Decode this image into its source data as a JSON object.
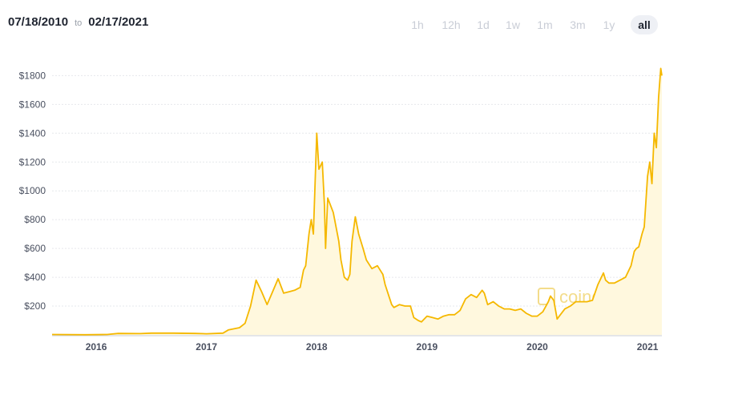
{
  "range": {
    "from": "07/18/2010",
    "to_word": "to",
    "to": "02/17/2021"
  },
  "tabs": [
    {
      "label": "1h"
    },
    {
      "label": "12h"
    },
    {
      "label": "1d"
    },
    {
      "label": "1w"
    },
    {
      "label": "1m"
    },
    {
      "label": "3m"
    },
    {
      "label": "1y"
    },
    {
      "label": "all",
      "active": true
    }
  ],
  "watermark": "coindesk",
  "colors": {
    "line": "#f5b800",
    "area": "#fff8de",
    "grid": "#e6e8ec",
    "axis": "#c9ccd2"
  },
  "chart_data": {
    "type": "line",
    "title": "",
    "xlabel": "",
    "ylabel": "",
    "grid": true,
    "y_ticks": [
      200,
      400,
      600,
      800,
      1000,
      1200,
      1400,
      1600,
      1800
    ],
    "y_tick_labels": [
      "$200",
      "$400",
      "$600",
      "$800",
      "$1000",
      "$1200",
      "$1400",
      "$1600",
      "$1800"
    ],
    "ylim": [
      0,
      1880
    ],
    "x_ticks": [
      2016,
      2017,
      2018,
      2019,
      2020,
      2021
    ],
    "x_tick_labels": [
      "2016",
      "2017",
      "2018",
      "2019",
      "2020",
      "2021"
    ],
    "xlim": [
      2015.6,
      2021.13
    ],
    "series": [
      {
        "values": [
          [
            2015.6,
            3
          ],
          [
            2015.9,
            1
          ],
          [
            2016.1,
            3
          ],
          [
            2016.2,
            10
          ],
          [
            2016.4,
            9
          ],
          [
            2016.5,
            12
          ],
          [
            2016.7,
            12
          ],
          [
            2016.9,
            10
          ],
          [
            2017.0,
            8
          ],
          [
            2017.15,
            12
          ],
          [
            2017.2,
            35
          ],
          [
            2017.3,
            50
          ],
          [
            2017.35,
            80
          ],
          [
            2017.4,
            200
          ],
          [
            2017.45,
            380
          ],
          [
            2017.5,
            300
          ],
          [
            2017.55,
            210
          ],
          [
            2017.6,
            300
          ],
          [
            2017.65,
            390
          ],
          [
            2017.7,
            290
          ],
          [
            2017.75,
            300
          ],
          [
            2017.8,
            310
          ],
          [
            2017.85,
            330
          ],
          [
            2017.88,
            450
          ],
          [
            2017.9,
            480
          ],
          [
            2017.93,
            700
          ],
          [
            2017.95,
            800
          ],
          [
            2017.97,
            700
          ],
          [
            2018.0,
            1400
          ],
          [
            2018.02,
            1150
          ],
          [
            2018.05,
            1200
          ],
          [
            2018.07,
            900
          ],
          [
            2018.08,
            600
          ],
          [
            2018.1,
            950
          ],
          [
            2018.15,
            850
          ],
          [
            2018.2,
            650
          ],
          [
            2018.22,
            520
          ],
          [
            2018.25,
            400
          ],
          [
            2018.28,
            380
          ],
          [
            2018.3,
            420
          ],
          [
            2018.32,
            650
          ],
          [
            2018.35,
            820
          ],
          [
            2018.38,
            700
          ],
          [
            2018.42,
            600
          ],
          [
            2018.45,
            520
          ],
          [
            2018.5,
            460
          ],
          [
            2018.55,
            480
          ],
          [
            2018.6,
            420
          ],
          [
            2018.62,
            350
          ],
          [
            2018.65,
            280
          ],
          [
            2018.68,
            210
          ],
          [
            2018.7,
            190
          ],
          [
            2018.75,
            210
          ],
          [
            2018.8,
            200
          ],
          [
            2018.85,
            200
          ],
          [
            2018.88,
            120
          ],
          [
            2018.92,
            100
          ],
          [
            2018.95,
            90
          ],
          [
            2019.0,
            130
          ],
          [
            2019.05,
            120
          ],
          [
            2019.1,
            110
          ],
          [
            2019.15,
            130
          ],
          [
            2019.2,
            140
          ],
          [
            2019.25,
            140
          ],
          [
            2019.3,
            170
          ],
          [
            2019.35,
            250
          ],
          [
            2019.4,
            280
          ],
          [
            2019.45,
            260
          ],
          [
            2019.5,
            310
          ],
          [
            2019.52,
            290
          ],
          [
            2019.55,
            210
          ],
          [
            2019.6,
            230
          ],
          [
            2019.65,
            200
          ],
          [
            2019.7,
            180
          ],
          [
            2019.75,
            180
          ],
          [
            2019.8,
            170
          ],
          [
            2019.85,
            180
          ],
          [
            2019.9,
            150
          ],
          [
            2019.95,
            130
          ],
          [
            2020.0,
            130
          ],
          [
            2020.05,
            160
          ],
          [
            2020.1,
            230
          ],
          [
            2020.12,
            270
          ],
          [
            2020.15,
            240
          ],
          [
            2020.18,
            110
          ],
          [
            2020.2,
            130
          ],
          [
            2020.25,
            180
          ],
          [
            2020.3,
            200
          ],
          [
            2020.35,
            230
          ],
          [
            2020.4,
            230
          ],
          [
            2020.45,
            230
          ],
          [
            2020.5,
            240
          ],
          [
            2020.55,
            350
          ],
          [
            2020.6,
            430
          ],
          [
            2020.62,
            380
          ],
          [
            2020.65,
            360
          ],
          [
            2020.7,
            360
          ],
          [
            2020.75,
            380
          ],
          [
            2020.8,
            400
          ],
          [
            2020.85,
            480
          ],
          [
            2020.88,
            580
          ],
          [
            2020.9,
            600
          ],
          [
            2020.92,
            610
          ],
          [
            2020.95,
            700
          ],
          [
            2020.97,
            750
          ],
          [
            2021.0,
            1100
          ],
          [
            2021.02,
            1200
          ],
          [
            2021.04,
            1050
          ],
          [
            2021.06,
            1400
          ],
          [
            2021.08,
            1300
          ],
          [
            2021.1,
            1650
          ],
          [
            2021.12,
            1850
          ],
          [
            2021.13,
            1800
          ]
        ]
      }
    ]
  }
}
